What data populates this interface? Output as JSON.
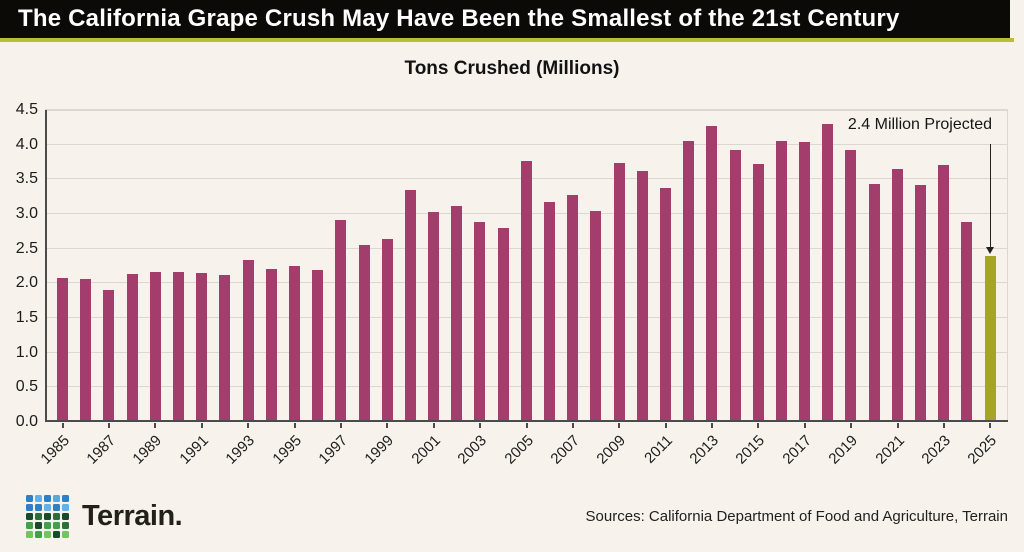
{
  "header": {
    "title": "The California Grape Crush May Have Been the Smallest of the 21st Century"
  },
  "chart_data": {
    "type": "bar",
    "title": "Tons Crushed (Millions)",
    "x": [
      1985,
      1986,
      1987,
      1988,
      1989,
      1990,
      1991,
      1992,
      1993,
      1994,
      1995,
      1996,
      1997,
      1998,
      1999,
      2000,
      2001,
      2002,
      2003,
      2004,
      2005,
      2006,
      2007,
      2008,
      2009,
      2010,
      2011,
      2012,
      2013,
      2014,
      2015,
      2016,
      2017,
      2018,
      2019,
      2020,
      2021,
      2022,
      2023,
      2024,
      2025
    ],
    "values": [
      2.08,
      2.06,
      1.91,
      2.14,
      2.17,
      2.16,
      2.15,
      2.12,
      2.33,
      2.2,
      2.25,
      2.19,
      2.91,
      2.56,
      2.64,
      3.34,
      3.03,
      3.12,
      2.89,
      2.8,
      3.77,
      3.17,
      3.28,
      3.04,
      3.73,
      3.62,
      3.37,
      4.05,
      4.27,
      3.93,
      3.72,
      4.06,
      4.04,
      4.3,
      3.93,
      3.43,
      3.65,
      3.42,
      3.7,
      2.89,
      2.4
    ],
    "ylim": [
      0,
      4.5
    ],
    "ytick_step": 0.5,
    "ytick_labels": [
      "0.0",
      "0.5",
      "1.0",
      "1.5",
      "2.0",
      "2.5",
      "3.0",
      "3.5",
      "4.0",
      "4.5"
    ],
    "xtick_labels": [
      "1985",
      "1987",
      "1989",
      "1991",
      "1993",
      "1995",
      "1997",
      "1999",
      "2001",
      "2003",
      "2005",
      "2007",
      "2009",
      "2011",
      "2013",
      "2015",
      "2017",
      "2019",
      "2021",
      "2023",
      "2025"
    ],
    "grid": true,
    "legend": "none",
    "bar_color": "#a33d6c",
    "projected_bar_color": "#a5a426",
    "projected_year": 2025,
    "annotation": {
      "text": "2.4 Million Projected",
      "target_year": 2025,
      "target_value": 2.4
    }
  },
  "footer": {
    "logo_text": "Terrain.",
    "sources": "Sources: California Department of Food and Agriculture, Terrain",
    "logo_colors": [
      "#2f7fc3",
      "#66b1e3",
      "#2f7fc3",
      "#5aa7dc",
      "#2f7fc3",
      "#2f7fc3",
      "#2f7fc3",
      "#66b1e3",
      "#2f7fc3",
      "#66b1e3",
      "#194a2c",
      "#2d6f3a",
      "#194a2c",
      "#2d6f3a",
      "#194a2c",
      "#41a04a",
      "#194a2c",
      "#41a04a",
      "#41a04a",
      "#2d6f3a",
      "#72c45e",
      "#41a04a",
      "#72c45e",
      "#194a2c",
      "#72c45e"
    ]
  },
  "colors": {
    "background": "#f8f2ec",
    "header_bg": "#0c0a07",
    "header_text": "#ffffff",
    "accent_line": "#b9bf34",
    "gridline": "#ddd7d1",
    "axis": "#4b4b4b",
    "text": "#1c1c1c"
  }
}
